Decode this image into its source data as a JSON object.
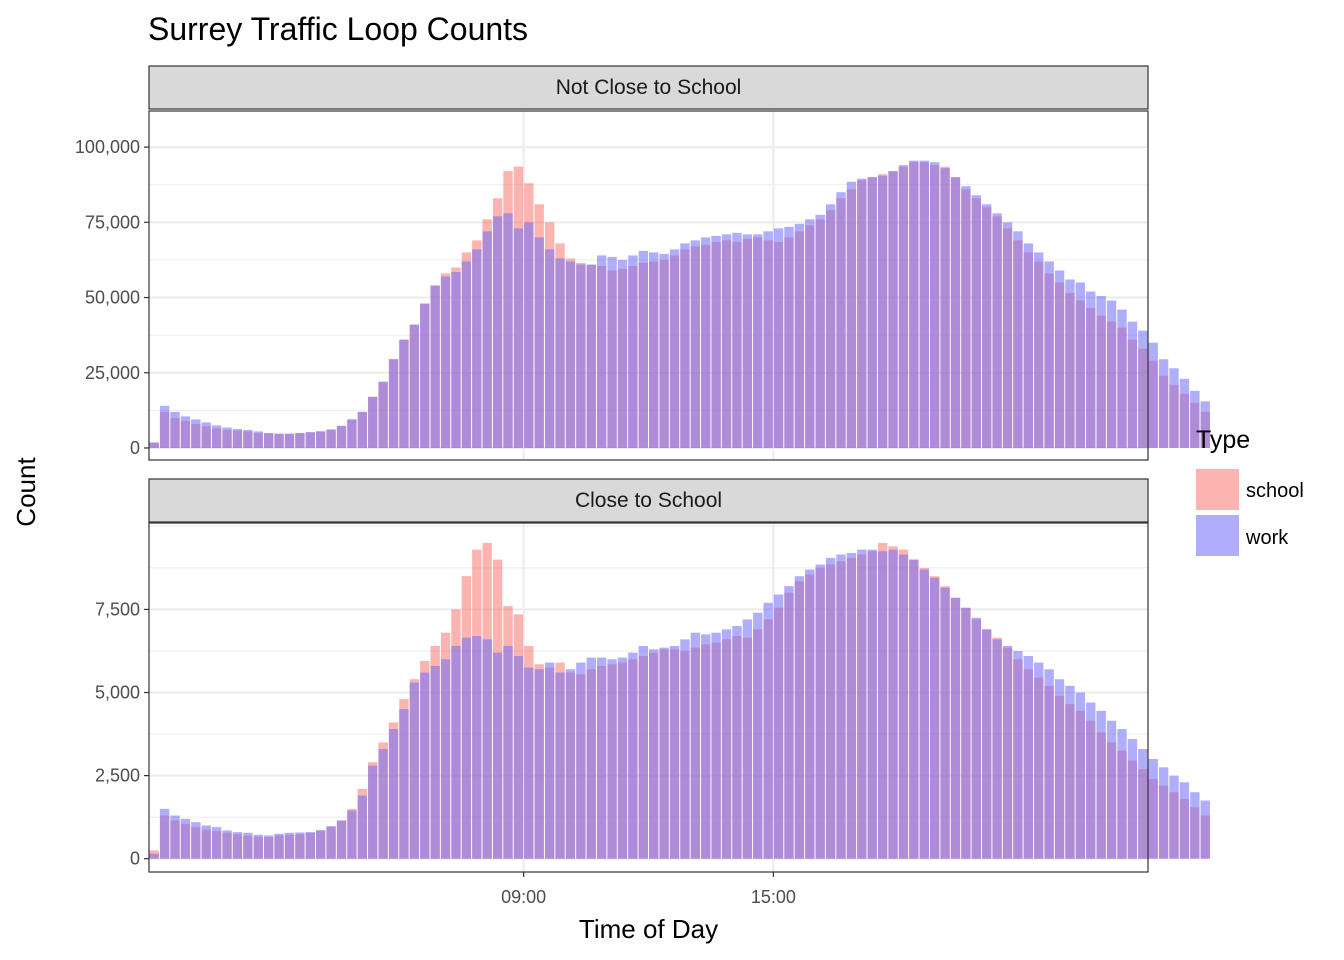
{
  "chart_data": {
    "type": "bar",
    "title": "Surrey Traffic Loop Counts",
    "xlabel": "Time of Day",
    "ylabel": "Count",
    "x_ticks": [
      "09:00",
      "15:00"
    ],
    "x_interval_minutes": 15,
    "x_range": [
      "00:00",
      "24:00"
    ],
    "legend": {
      "title": "Type",
      "placement": "right",
      "entries": [
        {
          "name": "school",
          "color": "#F8766D"
        },
        {
          "name": "work",
          "color": "#6F6CF8"
        }
      ]
    },
    "bar_opacity": 0.55,
    "grid": true,
    "panels": [
      {
        "strip": "Not Close to School",
        "ylim": [
          -4000,
          112000
        ],
        "y_ticks": [
          0,
          25000,
          50000,
          75000,
          100000
        ],
        "y_tick_labels": [
          "0",
          "25,000",
          "50,000",
          "75,000",
          "100,000"
        ],
        "series": [
          {
            "name": "school",
            "values": [
              1800,
              12000,
              10000,
              9000,
              8000,
              7200,
              6500,
              6000,
              5800,
              5500,
              5000,
              4800,
              4600,
              4600,
              4900,
              5100,
              5400,
              6000,
              7200,
              9500,
              12000,
              17000,
              22000,
              29500,
              36000,
              41000,
              48000,
              54000,
              58000,
              60000,
              65000,
              69000,
              76000,
              83000,
              92000,
              93500,
              88000,
              81000,
              75000,
              68000,
              63000,
              61500,
              60800,
              60500,
              59000,
              59500,
              60500,
              61500,
              62000,
              62500,
              64000,
              66000,
              67000,
              67500,
              68500,
              69000,
              68500,
              69500,
              70000,
              69000,
              68500,
              70000,
              72000,
              74000,
              76000,
              79000,
              83000,
              86000,
              89000,
              90000,
              91000,
              92000,
              93500,
              95000,
              95000,
              94000,
              93500,
              90000,
              86000,
              83000,
              80000,
              77000,
              73000,
              69000,
              65000,
              62000,
              58000,
              55000,
              51500,
              49000,
              46500,
              44000,
              42000,
              40000,
              36000,
              33000,
              29000,
              24000,
              21000,
              18000,
              15000,
              12000
            ]
          },
          {
            "name": "work",
            "values": [
              1800,
              14000,
              12000,
              10500,
              9500,
              8500,
              7500,
              6800,
              6300,
              6000,
              5500,
              5000,
              4800,
              4800,
              5000,
              5300,
              5600,
              6200,
              7400,
              9500,
              12000,
              17000,
              22000,
              29500,
              36000,
              41000,
              48000,
              54000,
              57000,
              58500,
              62000,
              66000,
              72000,
              77000,
              78000,
              73000,
              75000,
              70000,
              66000,
              63000,
              62000,
              61000,
              61000,
              64000,
              63500,
              62500,
              64000,
              65500,
              65000,
              64500,
              66000,
              68000,
              69000,
              70000,
              70500,
              71000,
              71500,
              71000,
              71000,
              72000,
              73000,
              73500,
              74500,
              76000,
              77500,
              81000,
              85000,
              88500,
              89500,
              90000,
              90500,
              92000,
              94000,
              95500,
              95500,
              95000,
              93000,
              90000,
              87000,
              84000,
              81000,
              78000,
              75000,
              72000,
              68000,
              65000,
              62000,
              59000,
              56000,
              55000,
              52000,
              50500,
              49000,
              46000,
              42000,
              39000,
              35000,
              29500,
              26500,
              23000,
              19000,
              15500
            ]
          }
        ]
      },
      {
        "strip": "Close to School",
        "ylim": [
          -400,
          10100
        ],
        "y_ticks": [
          0,
          2500,
          5000,
          7500
        ],
        "y_tick_labels": [
          "0",
          "2,500",
          "5,000",
          "7,500"
        ],
        "series": [
          {
            "name": "school",
            "values": [
              250,
              1300,
              1150,
              1050,
              950,
              880,
              830,
              780,
              740,
              690,
              660,
              650,
              700,
              720,
              740,
              780,
              840,
              960,
              1150,
              1500,
              2100,
              2900,
              3500,
              4100,
              4800,
              5400,
              5950,
              6400,
              6800,
              7500,
              8500,
              9300,
              9500,
              9000,
              7600,
              7350,
              6400,
              5850,
              5750,
              5900,
              5600,
              5550,
              5700,
              5800,
              5850,
              5900,
              6000,
              6100,
              6200,
              6300,
              6300,
              6250,
              6350,
              6450,
              6500,
              6600,
              6700,
              6650,
              6900,
              7200,
              7550,
              8000,
              8350,
              8550,
              8750,
              8850,
              8950,
              9050,
              9150,
              9250,
              9500,
              9400,
              9300,
              9000,
              8750,
              8500,
              8200,
              7850,
              7550,
              7200,
              6900,
              6650,
              6350,
              6000,
              5700,
              5450,
              5200,
              4900,
              4650,
              4450,
              4150,
              3800,
              3500,
              3250,
              2950,
              2700,
              2400,
              2200,
              2000,
              1800,
              1550,
              1300
            ]
          },
          {
            "name": "work",
            "values": [
              150,
              1500,
              1300,
              1200,
              1100,
              1000,
              950,
              850,
              800,
              780,
              720,
              700,
              750,
              780,
              790,
              800,
              860,
              980,
              1150,
              1450,
              1900,
              2800,
              3300,
              3900,
              4500,
              5300,
              5600,
              5800,
              6000,
              6400,
              6650,
              6700,
              6600,
              6200,
              6400,
              6100,
              5750,
              5700,
              5900,
              5600,
              5700,
              5900,
              6050,
              6050,
              6000,
              6050,
              6200,
              6400,
              6300,
              6350,
              6400,
              6600,
              6800,
              6750,
              6800,
              6900,
              7000,
              7200,
              7400,
              7700,
              7950,
              8200,
              8500,
              8700,
              8850,
              9050,
              9150,
              9200,
              9300,
              9300,
              9250,
              9300,
              9150,
              9000,
              8700,
              8450,
              8150,
              7850,
              7550,
              7250,
              6900,
              6600,
              6400,
              6250,
              6100,
              5900,
              5700,
              5400,
              5200,
              5000,
              4700,
              4450,
              4150,
              3900,
              3600,
              3300,
              3000,
              2750,
              2500,
              2300,
              2000,
              1750
            ]
          }
        ]
      }
    ]
  }
}
